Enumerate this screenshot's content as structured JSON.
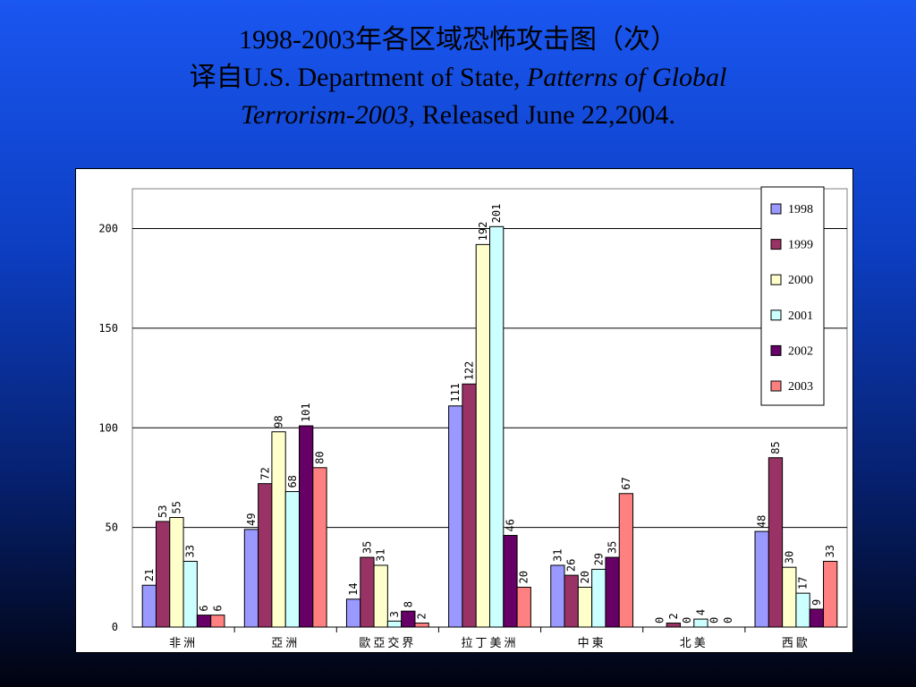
{
  "title": {
    "line1": "1998-2003年各区域恐怖攻击图（次）",
    "line2_prefix": "译自U.S. Department of State, ",
    "line2_italic": "Patterns of Global",
    "line3_italic": "Terrorism-2003",
    "line3_suffix": ", Released June 22,2004."
  },
  "colors": {
    "1998": "#9999ff",
    "1999": "#993366",
    "2000": "#ffffcc",
    "2001": "#ccffff",
    "2002": "#660066",
    "2003": "#ff8080"
  },
  "chart_data": {
    "type": "bar",
    "title": "",
    "xlabel": "",
    "ylabel": "",
    "ylim": [
      0,
      220
    ],
    "yticks": [
      0,
      50,
      100,
      150,
      200
    ],
    "grid": true,
    "legend": "top-right",
    "categories": [
      "非洲",
      "亞洲",
      "歐亞交界",
      "拉丁美洲",
      "中東",
      "北美",
      "西歐"
    ],
    "series": [
      {
        "name": "1998",
        "values": [
          21,
          49,
          14,
          111,
          31,
          0,
          48
        ]
      },
      {
        "name": "1999",
        "values": [
          53,
          72,
          35,
          122,
          26,
          2,
          85
        ]
      },
      {
        "name": "2000",
        "values": [
          55,
          98,
          31,
          192,
          20,
          0,
          30
        ]
      },
      {
        "name": "2001",
        "values": [
          33,
          68,
          3,
          201,
          29,
          4,
          17
        ]
      },
      {
        "name": "2002",
        "values": [
          6,
          101,
          8,
          46,
          35,
          0,
          9
        ]
      },
      {
        "name": "2003",
        "values": [
          6,
          80,
          2,
          20,
          67,
          0,
          33
        ]
      }
    ]
  }
}
